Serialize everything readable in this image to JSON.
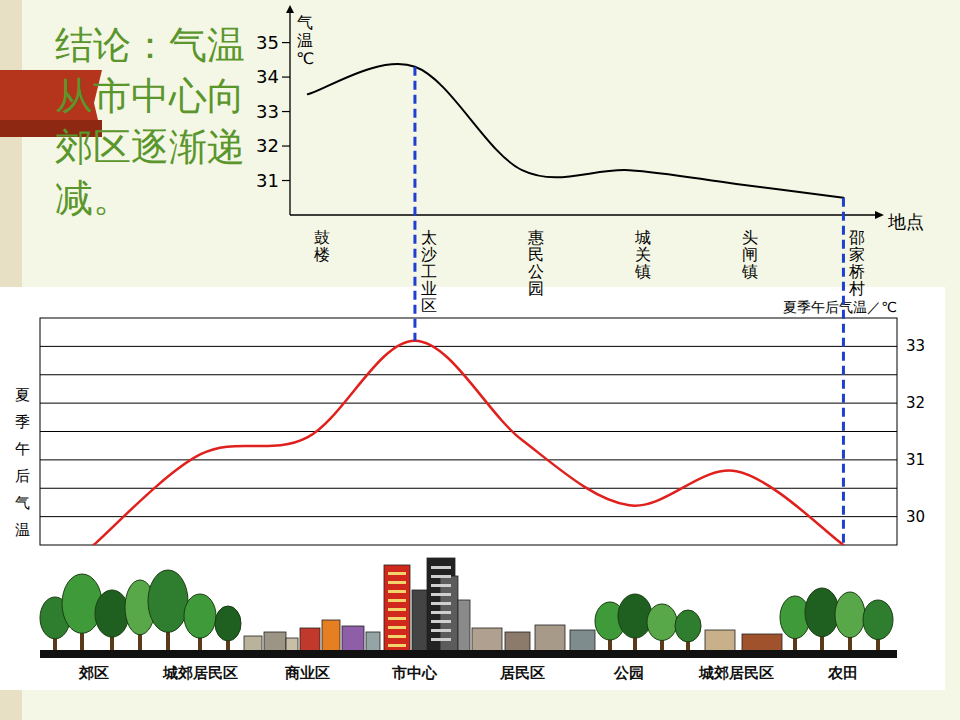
{
  "chart_data": [
    {
      "type": "line",
      "annotations": [
        "结论：气温从市中心向郊区逐渐递减。"
      ],
      "y_label": "气温℃",
      "x_label": "地点",
      "categories": [
        "鼓楼",
        "太沙工业区",
        "惠民公园",
        "城关镇",
        "头闸镇",
        "邵家桥村"
      ],
      "values": [
        33.5,
        34.3,
        31.3,
        31.3,
        30.9,
        30.5
      ],
      "color": "#000000",
      "ylim": [
        30,
        35.8
      ],
      "yticks": [
        31,
        32,
        33,
        34,
        35
      ],
      "grid": false
    },
    {
      "type": "line",
      "title": "夏季午后气温／℃",
      "y_label": "夏季午后气温",
      "categories": [
        "郊区",
        "城郊居民区",
        "商业区",
        "市中心",
        "居民区",
        "公园",
        "城郊居民区",
        "农田"
      ],
      "values": [
        29.5,
        31.1,
        31.4,
        33.1,
        31.35,
        30.2,
        30.8,
        29.5
      ],
      "color": "#e0201c",
      "ylim": [
        29.5,
        33.5
      ],
      "yticks": [
        30,
        31,
        32,
        33
      ],
      "grid": true
    }
  ]
}
